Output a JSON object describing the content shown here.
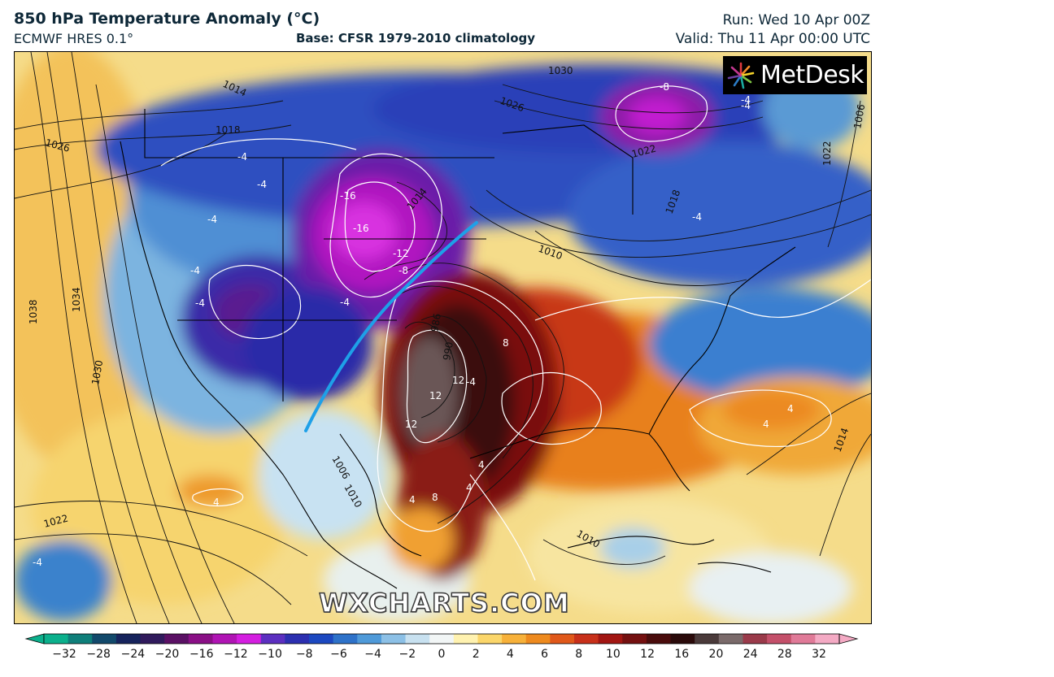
{
  "header": {
    "title": "850 hPa Temperature Anomaly (°C)",
    "subtitle": "ECMWF HRES 0.1°",
    "base": "Base: CFSR 1979-2010 climatology",
    "run": "Run: Wed 10 Apr 00Z",
    "valid": "Valid: Thu 11 Apr 00:00 UTC"
  },
  "logo": {
    "text": "MetDesk",
    "icon": "metdesk-starburst-icon"
  },
  "watermark": "WXCHARTS.COM",
  "colorbar": {
    "ticks": [
      "−32",
      "−28",
      "−24",
      "−20",
      "−16",
      "−12",
      "−10",
      "−8",
      "−6",
      "−4",
      "−2",
      "0",
      "2",
      "4",
      "6",
      "8",
      "10",
      "12",
      "16",
      "20",
      "24",
      "28",
      "32"
    ],
    "colors": [
      "#0bb08c",
      "#0f7f7a",
      "#12496b",
      "#16235c",
      "#301a5c",
      "#5a1064",
      "#8a0f86",
      "#b014b4",
      "#d41ee0",
      "#5c2fc0",
      "#2c2fb0",
      "#1c48c0",
      "#2e72c9",
      "#4f9ad9",
      "#8cc0e6",
      "#c8e1f0",
      "#f2f6f6",
      "#fff2b0",
      "#fbd66a",
      "#f7b13a",
      "#ee8a1e",
      "#e0581a",
      "#c8301a",
      "#a21612",
      "#741010",
      "#4a0c0c",
      "#2a0a0a",
      "#4a3a3a",
      "#7a6a6a",
      "#9a3a4a",
      "#c4506a",
      "#e07a98",
      "#f4aac4"
    ]
  },
  "map_labels": {
    "isobars": [
      "1030",
      "1026",
      "1014",
      "1018",
      "1026",
      "1022",
      "1018",
      "1014",
      "1010",
      "1034",
      "1038",
      "1030",
      "1022",
      "1014",
      "1010",
      "1006",
      "1010",
      "1022",
      "1006",
      "986",
      "990"
    ],
    "anomalies": [
      "-8",
      "-4",
      "-4",
      "-4",
      "-4",
      "-4",
      "-16",
      "-16",
      "-12",
      "-8",
      "-4",
      "-4",
      "-4",
      "-4",
      "-4",
      "8",
      "12",
      "12",
      "12",
      "8",
      "4",
      "4",
      "4",
      "4",
      "-4",
      "4",
      "4"
    ]
  }
}
